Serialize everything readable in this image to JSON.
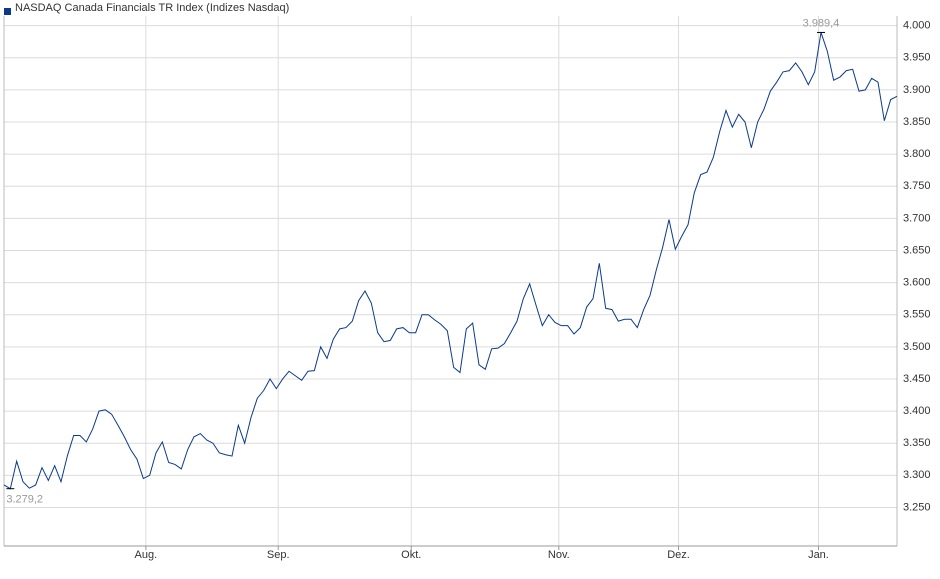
{
  "chart_data": {
    "type": "line",
    "legend": "NASDAQ Canada Financials TR Index  (Indizes Nasdaq)",
    "series": [
      {
        "name": "NASDAQ Canada Financials TR Index",
        "color": "#0b3a8c",
        "values": [
          3285,
          3279.2,
          3322,
          3290,
          3280,
          3285,
          3312,
          3292,
          3315,
          3290,
          3330,
          3362,
          3362,
          3352,
          3372,
          3400,
          3402,
          3395,
          3378,
          3360,
          3340,
          3325,
          3295,
          3300,
          3335,
          3352,
          3320,
          3317,
          3310,
          3340,
          3360,
          3365,
          3355,
          3350,
          3335,
          3332,
          3330,
          3378,
          3350,
          3390,
          3420,
          3432,
          3450,
          3435,
          3450,
          3462,
          3455,
          3448,
          3462,
          3463,
          3500,
          3482,
          3512,
          3528,
          3530,
          3540,
          3572,
          3587,
          3568,
          3522,
          3508,
          3510,
          3528,
          3530,
          3522,
          3522,
          3550,
          3550,
          3542,
          3535,
          3525,
          3468,
          3460,
          3528,
          3537,
          3472,
          3465,
          3497,
          3498,
          3505,
          3522,
          3540,
          3575,
          3598,
          3565,
          3533,
          3550,
          3538,
          3533,
          3533,
          3520,
          3530,
          3562,
          3575,
          3630,
          3560,
          3558,
          3540,
          3543,
          3543,
          3530,
          3558,
          3580,
          3620,
          3655,
          3698,
          3652,
          3672,
          3690,
          3740,
          3768,
          3772,
          3795,
          3835,
          3868,
          3842,
          3862,
          3850,
          3810,
          3850,
          3870,
          3898,
          3912,
          3928,
          3930,
          3942,
          3928,
          3908,
          3928,
          3989.4,
          3960,
          3915,
          3920,
          3930,
          3932,
          3898,
          3900,
          3918,
          3912,
          3852,
          3885,
          3890
        ]
      }
    ],
    "annotations": [
      {
        "text": "3.989,4",
        "value": 3989.4
      },
      {
        "text": "3.279,2",
        "value": 3279.2
      }
    ],
    "xlim": [
      0,
      141
    ],
    "xticks": [
      {
        "value": 22.4,
        "label": "Aug."
      },
      {
        "value": 43.3,
        "label": "Sep."
      },
      {
        "value": 64.3,
        "label": "Okt."
      },
      {
        "value": 87.6,
        "label": "Nov."
      },
      {
        "value": 106.5,
        "label": "Dez."
      },
      {
        "value": 128.6,
        "label": "Jan."
      }
    ],
    "ylim": [
      3190,
      4015
    ],
    "yticks": [
      {
        "value": 3250,
        "label": "3.250"
      },
      {
        "value": 3300,
        "label": "3.300"
      },
      {
        "value": 3350,
        "label": "3.350"
      },
      {
        "value": 3400,
        "label": "3.400"
      },
      {
        "value": 3450,
        "label": "3.450"
      },
      {
        "value": 3500,
        "label": "3.500"
      },
      {
        "value": 3550,
        "label": "3.550"
      },
      {
        "value": 3600,
        "label": "3.600"
      },
      {
        "value": 3650,
        "label": "3.650"
      },
      {
        "value": 3700,
        "label": "3.700"
      },
      {
        "value": 3750,
        "label": "3.750"
      },
      {
        "value": 3800,
        "label": "3.800"
      },
      {
        "value": 3850,
        "label": "3.850"
      },
      {
        "value": 3900,
        "label": "3.900"
      },
      {
        "value": 3950,
        "label": "3.950"
      },
      {
        "value": 4000,
        "label": "4.000"
      }
    ],
    "grid": true
  }
}
